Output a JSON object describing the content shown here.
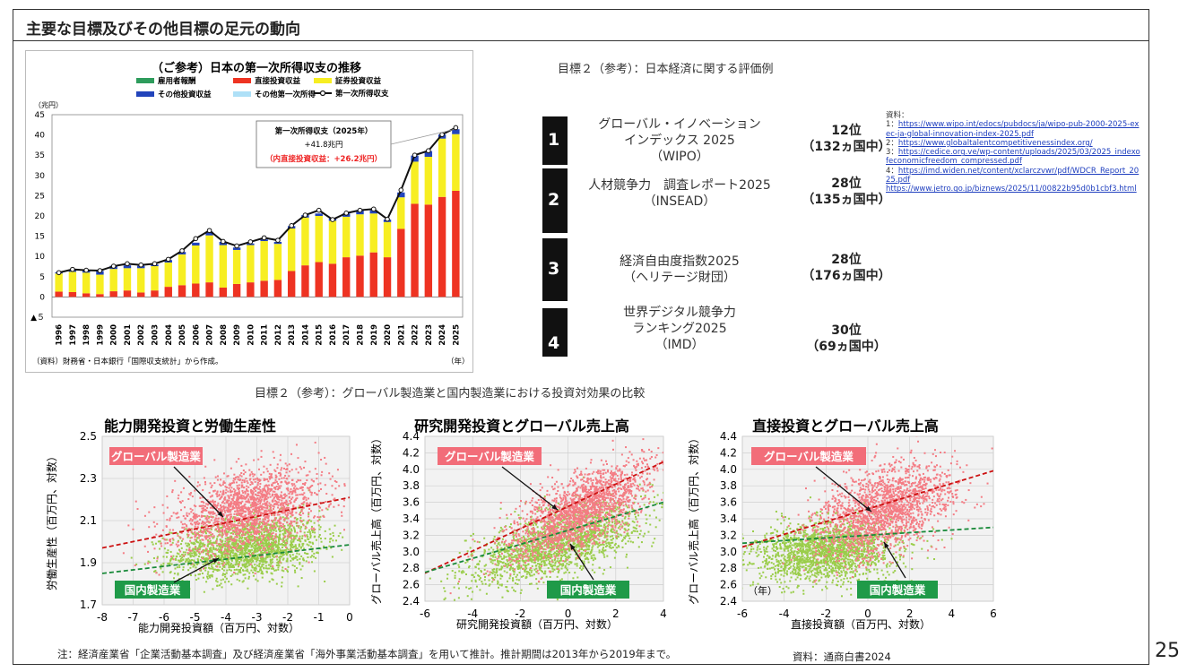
{
  "header": {
    "title": "主要な目標及びその他目標の足元の動向"
  },
  "page_number": "25",
  "right_heading": "目標２（参考）：日本経済に関する評価例",
  "rankings": [
    {
      "num": "1",
      "name_lines": [
        "グローバル・イノベーション",
        "インデックス 2025",
        "（WIPO）"
      ],
      "rank": "12位",
      "count": "（132ヵ国中）"
    },
    {
      "num": "2",
      "name_lines": [
        "人材競争力　調査レポート2025",
        "（INSEAD）"
      ],
      "rank": "28位",
      "count": "（135ヵ国中）"
    },
    {
      "num": "3",
      "name_lines": [
        "経済自由度指数2025",
        "（ヘリテージ財団）"
      ],
      "rank": "28位",
      "count": "（176ヵ国中）"
    },
    {
      "num": "4",
      "name_lines": [
        "世界デジタル競争力",
        "ランキング2025",
        "（IMD）"
      ],
      "rank": "30位",
      "count": "（69ヵ国中）"
    }
  ],
  "sources": {
    "label": "資料：",
    "items": [
      {
        "prefix": "1：",
        "url": "https://www.wipo.int/edocs/pubdocs/ja/wipo-pub-2000-2025-exec-ja-global-innovation-index-2025.pdf"
      },
      {
        "prefix": "2：",
        "url": "https://www.globaltalentcompetitivenessindex.org/"
      },
      {
        "prefix": "3：",
        "url": "https://cedice.org.ve/wp-content/uploads/2025/03/2025_indexofeconomicfreedom_compressed.pdf"
      },
      {
        "prefix": "4：",
        "url": "https://imd.widen.net/content/xclarczvwr/pdf/WDCR_Report_2025.pdf"
      },
      {
        "prefix": "",
        "url": "https://www.jetro.go.jp/biznews/2025/11/00822b95d0b1cbf3.html"
      }
    ]
  },
  "bottom_heading": "目標２（参考）：グローバル製造業と国内製造業における投資対効果の比較",
  "note": "注：経済産業省「企業活動基本調査」及び経済産業省「海外事業活動基本調査」を用いて推計。推計期間は2013年から2019年まで。",
  "source_bottom": "資料：通商白書2024",
  "chart_data": [
    {
      "type": "bar",
      "stacked": true,
      "title": "（ご参考）日本の第一次所得収支の推移",
      "ylabel": "（兆円）",
      "xlabel": "（年）",
      "source": "（資料）財務省・日本銀行「国際収支統計」から作成。",
      "ylim": [
        -5,
        45
      ],
      "yticks": [
        45,
        40,
        35,
        30,
        25,
        20,
        15,
        10,
        5,
        0,
        -5
      ],
      "ytick_labels": [
        "45",
        "40",
        "35",
        "30",
        "25",
        "20",
        "15",
        "10",
        "5",
        "0",
        "▲５"
      ],
      "categories": [
        "1996",
        "1997",
        "1998",
        "1999",
        "2000",
        "2001",
        "2002",
        "2003",
        "2004",
        "2005",
        "2006",
        "2007",
        "2008",
        "2009",
        "2010",
        "2011",
        "2012",
        "2013",
        "2014",
        "2015",
        "2016",
        "2017",
        "2018",
        "2019",
        "2020",
        "2021",
        "2022",
        "2023",
        "2024",
        "2025"
      ],
      "series": [
        {
          "name": "雇用者報酬",
          "color": "#2e9c5c",
          "values": [
            0,
            0,
            0,
            0,
            0,
            0,
            0,
            0,
            0,
            0,
            0,
            0,
            0,
            0,
            0,
            0,
            0,
            0,
            0,
            0,
            0,
            0,
            0,
            0,
            0,
            0,
            0,
            0,
            0,
            0
          ]
        },
        {
          "name": "直接投資収益",
          "color": "#ee3322",
          "values": [
            1.3,
            1.2,
            0.9,
            0.7,
            1.4,
            1.6,
            1.1,
            1.6,
            2.5,
            2.9,
            3.3,
            3.6,
            2.3,
            3.2,
            3.6,
            4.0,
            4.2,
            6.4,
            7.8,
            8.6,
            8.2,
            9.8,
            10.2,
            11.0,
            9.8,
            16.8,
            23.0,
            22.8,
            24.7,
            26.2
          ]
        },
        {
          "name": "証券投資収益",
          "color": "#f7ee22",
          "values": [
            4.5,
            5.0,
            5.1,
            4.8,
            5.5,
            5.5,
            6.0,
            6.0,
            6.0,
            7.6,
            9.4,
            11.6,
            10.5,
            8.4,
            9.2,
            9.8,
            8.9,
            10.5,
            11.8,
            11.4,
            10.6,
            10.0,
            10.2,
            9.6,
            8.7,
            7.8,
            10.4,
            11.8,
            14.4,
            14.0
          ]
        },
        {
          "name": "その他投資収益",
          "color": "#2244bb",
          "values": [
            0.3,
            0.5,
            0.6,
            0.9,
            0.8,
            0.7,
            0.6,
            0.4,
            0.6,
            0.6,
            0.7,
            0.9,
            0.8,
            0.6,
            0.4,
            0.4,
            0.5,
            0.6,
            0.6,
            0.6,
            0.6,
            0.8,
            0.9,
            0.8,
            0.6,
            1.2,
            1.5,
            1.4,
            1.0,
            1.2
          ]
        },
        {
          "name": "その他第一次所得",
          "color": "#aee0f7",
          "values": [
            0,
            0,
            0,
            0,
            0,
            0,
            0,
            0,
            0,
            0,
            0,
            0,
            0,
            0,
            0,
            0,
            0,
            0,
            0,
            0,
            0,
            0,
            0,
            0,
            0,
            0,
            0,
            0,
            0,
            0
          ]
        }
      ],
      "line": {
        "name": "第一次所得収支",
        "color": "#111111",
        "values": [
          6.0,
          6.8,
          6.6,
          6.5,
          7.6,
          8.2,
          7.9,
          8.2,
          9.3,
          11.4,
          14.4,
          16.4,
          13.7,
          12.6,
          13.6,
          14.6,
          14.0,
          17.6,
          20.2,
          21.4,
          19.1,
          20.7,
          21.4,
          21.7,
          19.2,
          26.4,
          35.0,
          36.1,
          40.1,
          41.8
        ]
      },
      "annotation": {
        "title": "第一次所得収支（2025年）",
        "value": "+41.8兆円",
        "sub": "（内直接投資収益：+26.2兆円）"
      }
    },
    {
      "type": "scatter",
      "title": "能力開発投資と労働生産性",
      "xlabel": "能力開発投資額（百万円、対数）",
      "ylabel": "労働生産性（百万円、対数）",
      "xlim": [
        -8,
        0
      ],
      "ylim": [
        1.7,
        2.5
      ],
      "xticks": [
        -8,
        -7,
        -6,
        -5,
        -4,
        -3,
        -2,
        -1,
        0
      ],
      "yticks": [
        1.7,
        1.9,
        2.1,
        2.3,
        2.5
      ],
      "series": [
        {
          "name": "グローバル製造業",
          "color": "#f47c84",
          "center": [
            -3.3,
            2.15
          ],
          "spread": [
            1.2,
            0.09
          ],
          "n": 1800,
          "fit": {
            "slope": 0.03,
            "intercept": 2.21,
            "color": "#cc1111"
          }
        },
        {
          "name": "国内製造業",
          "color": "#9acd4a",
          "center": [
            -3.3,
            1.97
          ],
          "spread": [
            1.2,
            0.07
          ],
          "n": 1800,
          "fit": {
            "slope": 0.017,
            "intercept": 1.985,
            "color": "#1a8a3a"
          }
        }
      ]
    },
    {
      "type": "scatter",
      "title": "研究開発投資とグローバル売上高",
      "xlabel": "研究開発投資額（百万円、対数）",
      "ylabel": "グローバル売上高（百万円、対数）",
      "xlim": [
        -6,
        4
      ],
      "ylim": [
        2.4,
        4.4
      ],
      "xticks": [
        -6,
        -4,
        -2,
        0,
        2,
        4
      ],
      "yticks": [
        2.4,
        2.6,
        2.8,
        3.0,
        3.2,
        3.4,
        3.6,
        3.8,
        4.0,
        4.2,
        4.4
      ],
      "series": [
        {
          "name": "グローバル製造業",
          "color": "#f47c84",
          "center": [
            0.5,
            3.5
          ],
          "spread": [
            1.5,
            0.22
          ],
          "n": 1800,
          "fit": {
            "slope": 0.135,
            "intercept": 3.55,
            "color": "#cc1111"
          }
        },
        {
          "name": "国内製造業",
          "color": "#9acd4a",
          "center": [
            -0.5,
            3.1
          ],
          "spread": [
            1.8,
            0.2
          ],
          "n": 1800,
          "fit": {
            "slope": 0.085,
            "intercept": 3.26,
            "color": "#1a8a3a"
          }
        }
      ]
    },
    {
      "type": "scatter",
      "title": "直接投資とグローバル売上高",
      "xlabel": "直接投資額（百万円、対数）",
      "ylabel": "グローバル売上高（百万円、対数）",
      "annotation": "（年）",
      "xlim": [
        -6,
        6
      ],
      "ylim": [
        2.4,
        4.4
      ],
      "xticks": [
        -6,
        -4,
        -2,
        0,
        2,
        4,
        6
      ],
      "yticks": [
        2.4,
        2.6,
        2.8,
        3.0,
        3.2,
        3.4,
        3.6,
        3.8,
        4.0,
        4.2,
        4.4
      ],
      "series": [
        {
          "name": "グローバル製造業",
          "color": "#f47c84",
          "center": [
            0.7,
            3.5
          ],
          "spread": [
            1.6,
            0.25
          ],
          "n": 1800,
          "fit": {
            "slope": 0.077,
            "intercept": 3.52,
            "color": "#cc1111"
          }
        },
        {
          "name": "国内製造業",
          "color": "#9acd4a",
          "center": [
            -2.0,
            3.0
          ],
          "spread": [
            1.7,
            0.18
          ],
          "n": 1800,
          "fit": {
            "slope": 0.016,
            "intercept": 3.2,
            "color": "#1a8a3a"
          }
        }
      ]
    }
  ]
}
